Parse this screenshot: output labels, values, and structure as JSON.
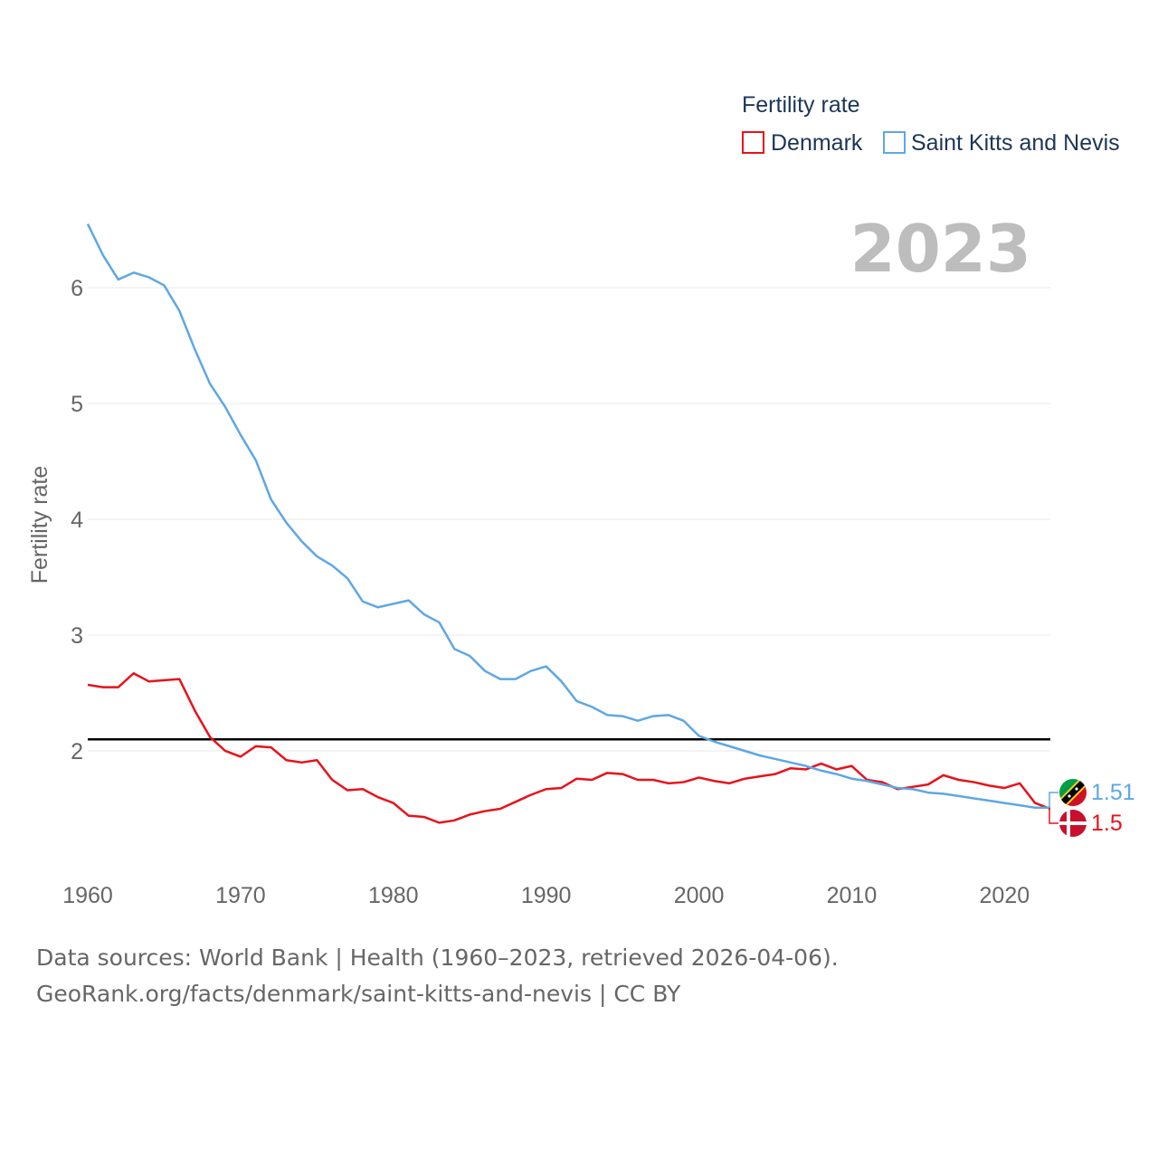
{
  "chart_data": {
    "type": "line",
    "legend_title": "Fertility rate",
    "year_label": "2023",
    "ylabel": "Fertility rate",
    "xlabel": "",
    "xlim": [
      1960,
      2023
    ],
    "ylim": [
      1.0,
      6.7
    ],
    "x_ticks": [
      "1960",
      "1970",
      "1980",
      "1990",
      "2000",
      "2010",
      "2020"
    ],
    "y_ticks": [
      "2",
      "3",
      "4",
      "5",
      "6"
    ],
    "reference_line": 2.1,
    "x": [
      1960,
      1961,
      1962,
      1963,
      1964,
      1965,
      1966,
      1967,
      1968,
      1969,
      1970,
      1971,
      1972,
      1973,
      1974,
      1975,
      1976,
      1977,
      1978,
      1979,
      1980,
      1981,
      1982,
      1983,
      1984,
      1985,
      1986,
      1987,
      1988,
      1989,
      1990,
      1991,
      1992,
      1993,
      1994,
      1995,
      1996,
      1997,
      1998,
      1999,
      2000,
      2001,
      2002,
      2003,
      2004,
      2005,
      2006,
      2007,
      2008,
      2009,
      2010,
      2011,
      2012,
      2013,
      2014,
      2015,
      2016,
      2017,
      2018,
      2019,
      2020,
      2021,
      2022,
      2023
    ],
    "series": [
      {
        "name": "Denmark",
        "color": "#e8121b",
        "end_label": "1.5",
        "values": [
          2.57,
          2.55,
          2.55,
          2.67,
          2.6,
          2.61,
          2.62,
          2.35,
          2.12,
          2.0,
          1.95,
          2.04,
          2.03,
          1.92,
          1.9,
          1.92,
          1.75,
          1.66,
          1.67,
          1.6,
          1.55,
          1.44,
          1.43,
          1.38,
          1.4,
          1.45,
          1.48,
          1.5,
          1.56,
          1.62,
          1.67,
          1.68,
          1.76,
          1.75,
          1.81,
          1.8,
          1.75,
          1.75,
          1.72,
          1.73,
          1.77,
          1.74,
          1.72,
          1.76,
          1.78,
          1.8,
          1.85,
          1.84,
          1.89,
          1.84,
          1.87,
          1.75,
          1.73,
          1.67,
          1.69,
          1.71,
          1.79,
          1.75,
          1.73,
          1.7,
          1.68,
          1.72,
          1.55,
          1.5
        ]
      },
      {
        "name": "Saint Kitts and Nevis",
        "color": "#5ea7e5",
        "end_label": "1.51",
        "values": [
          6.55,
          6.28,
          6.07,
          6.13,
          6.09,
          6.02,
          5.8,
          5.47,
          5.17,
          4.97,
          4.73,
          4.51,
          4.17,
          3.97,
          3.81,
          3.68,
          3.6,
          3.49,
          3.29,
          3.24,
          3.27,
          3.3,
          3.18,
          3.11,
          2.88,
          2.82,
          2.69,
          2.62,
          2.62,
          2.69,
          2.73,
          2.6,
          2.43,
          2.38,
          2.31,
          2.3,
          2.26,
          2.3,
          2.31,
          2.26,
          2.13,
          2.08,
          2.04,
          2.0,
          1.96,
          1.93,
          1.9,
          1.87,
          1.83,
          1.8,
          1.76,
          1.74,
          1.71,
          1.68,
          1.67,
          1.64,
          1.63,
          1.61,
          1.59,
          1.57,
          1.55,
          1.53,
          1.51,
          1.51
        ]
      }
    ]
  },
  "source": {
    "line1": "Data sources: World Bank | Health (1960–2023, retrieved 2026-04-06).",
    "line2": "GeoRank.org/facts/denmark/saint-kitts-and-nevis | CC BY"
  }
}
